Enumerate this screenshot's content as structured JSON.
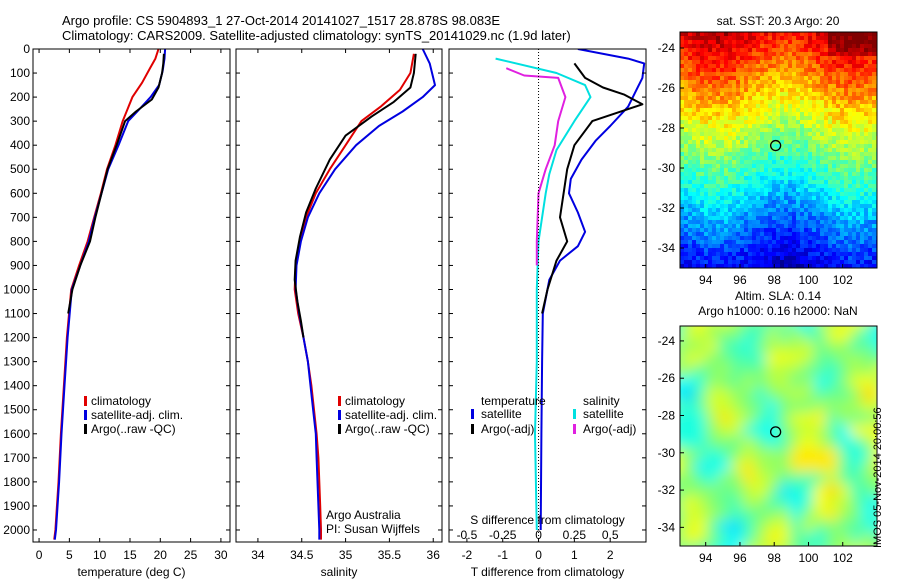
{
  "titles": {
    "line1": "Argo profile: CS 5904893_1 27-Oct-2014 20141027_1517 28.878S 98.083E",
    "line2": "Climatology: CARS2009. Satellite-adjusted climatology: synTS_20141029.nc (1.9d later)"
  },
  "credits": {
    "org": "Argo Australia",
    "pi": "PI: Susan Wijffels",
    "stamp": "IMOS 05-Nov-2014 20:00:56"
  },
  "colors": {
    "climatology": "#e00000",
    "satellite": "#0000e0",
    "argo": "#000000",
    "salinity_sat": "#00e0e0",
    "salinity_argo": "#e020e0"
  },
  "chart_data": [
    {
      "id": "temperature",
      "type": "line",
      "xlabel": "temperature (deg C)",
      "ylabel": "",
      "xlim": [
        -1,
        31.5
      ],
      "ylim": [
        2050,
        0
      ],
      "xticks": [
        0,
        5,
        10,
        15,
        20,
        25,
        30
      ],
      "yticks": [
        0,
        100,
        200,
        300,
        400,
        500,
        600,
        700,
        800,
        900,
        1000,
        1100,
        1200,
        1300,
        1400,
        1500,
        1600,
        1700,
        1800,
        1900,
        2000
      ],
      "legend": [
        "climatology",
        "satellite-adj. clim.",
        "Argo(..raw -QC)"
      ],
      "legend_placement": "lower-center",
      "series": [
        {
          "name": "climatology",
          "color": "#e00000",
          "points": [
            [
              19.7,
              0
            ],
            [
              19.2,
              40
            ],
            [
              18.3,
              80
            ],
            [
              17.0,
              140
            ],
            [
              15.4,
              200
            ],
            [
              13.8,
              300
            ],
            [
              12.6,
              400
            ],
            [
              11.2,
              500
            ],
            [
              10.2,
              600
            ],
            [
              9.1,
              700
            ],
            [
              8.0,
              800
            ],
            [
              6.6,
              900
            ],
            [
              5.3,
              1000
            ],
            [
              4.6,
              1200
            ],
            [
              4.1,
              1400
            ],
            [
              3.6,
              1600
            ],
            [
              3.2,
              1800
            ],
            [
              2.7,
              2000
            ],
            [
              2.5,
              2040
            ]
          ]
        },
        {
          "name": "satellite-adj. clim.",
          "color": "#0000e0",
          "points": [
            [
              20.8,
              0
            ],
            [
              20.7,
              40
            ],
            [
              20.4,
              90
            ],
            [
              19.8,
              150
            ],
            [
              18.4,
              200
            ],
            [
              16.2,
              260
            ],
            [
              14.7,
              300
            ],
            [
              13.1,
              400
            ],
            [
              11.4,
              500
            ],
            [
              10.3,
              600
            ],
            [
              9.2,
              700
            ],
            [
              8.2,
              800
            ],
            [
              6.8,
              900
            ],
            [
              5.4,
              1000
            ],
            [
              4.7,
              1200
            ],
            [
              4.2,
              1400
            ],
            [
              3.7,
              1600
            ],
            [
              3.3,
              1800
            ],
            [
              2.8,
              2000
            ],
            [
              2.6,
              2040
            ]
          ]
        },
        {
          "name": "Argo(..raw -QC)",
          "color": "#000000",
          "points": [
            [
              20.6,
              20
            ],
            [
              20.5,
              60
            ],
            [
              20.3,
              100
            ],
            [
              19.7,
              160
            ],
            [
              18.6,
              210
            ],
            [
              16.0,
              260
            ],
            [
              14.2,
              300
            ],
            [
              12.8,
              400
            ],
            [
              11.3,
              500
            ],
            [
              10.3,
              600
            ],
            [
              9.3,
              700
            ],
            [
              8.4,
              800
            ],
            [
              6.8,
              900
            ],
            [
              5.5,
              1000
            ],
            [
              4.8,
              1100
            ]
          ]
        }
      ]
    },
    {
      "id": "salinity",
      "type": "line",
      "xlabel": "salinity",
      "ylabel": "",
      "xlim": [
        33.75,
        36.1
      ],
      "ylim": [
        2050,
        0
      ],
      "xticks": [
        34,
        34.5,
        35,
        35.5,
        36
      ],
      "legend": [
        "climatology",
        "satellite-adj. clim.",
        "Argo(..raw -QC)"
      ],
      "legend_placement": "lower-center",
      "series": [
        {
          "name": "climatology",
          "color": "#e00000",
          "points": [
            [
              35.78,
              20
            ],
            [
              35.74,
              100
            ],
            [
              35.62,
              170
            ],
            [
              35.4,
              240
            ],
            [
              35.18,
              300
            ],
            [
              35.0,
              400
            ],
            [
              34.82,
              500
            ],
            [
              34.66,
              600
            ],
            [
              34.55,
              700
            ],
            [
              34.48,
              800
            ],
            [
              34.43,
              900
            ],
            [
              34.42,
              1000
            ],
            [
              34.46,
              1100
            ],
            [
              34.52,
              1200
            ],
            [
              34.57,
              1300
            ],
            [
              34.61,
              1400
            ],
            [
              34.64,
              1500
            ],
            [
              34.67,
              1600
            ],
            [
              34.69,
              1700
            ],
            [
              34.7,
              1800
            ],
            [
              34.71,
              1900
            ],
            [
              34.72,
              2000
            ],
            [
              34.72,
              2040
            ]
          ]
        },
        {
          "name": "satellite-adj. clim.",
          "color": "#0000e0",
          "points": [
            [
              35.88,
              0
            ],
            [
              35.96,
              60
            ],
            [
              36.02,
              150
            ],
            [
              35.88,
              200
            ],
            [
              35.65,
              260
            ],
            [
              35.38,
              320
            ],
            [
              35.12,
              400
            ],
            [
              34.88,
              500
            ],
            [
              34.7,
              600
            ],
            [
              34.57,
              700
            ],
            [
              34.49,
              800
            ],
            [
              34.44,
              900
            ],
            [
              34.43,
              1000
            ],
            [
              34.47,
              1100
            ],
            [
              34.52,
              1200
            ],
            [
              34.57,
              1300
            ],
            [
              34.6,
              1400
            ],
            [
              34.63,
              1500
            ],
            [
              34.66,
              1600
            ],
            [
              34.67,
              1700
            ],
            [
              34.68,
              1800
            ],
            [
              34.69,
              1900
            ],
            [
              34.7,
              2000
            ],
            [
              34.7,
              2040
            ]
          ]
        },
        {
          "name": "Argo(..raw -QC)",
          "color": "#000000",
          "points": [
            [
              35.8,
              20
            ],
            [
              35.78,
              100
            ],
            [
              35.74,
              160
            ],
            [
              35.55,
              220
            ],
            [
              35.3,
              280
            ],
            [
              35.0,
              360
            ],
            [
              34.82,
              460
            ],
            [
              34.66,
              580
            ],
            [
              34.55,
              680
            ],
            [
              34.48,
              780
            ],
            [
              34.43,
              880
            ],
            [
              34.42,
              960
            ],
            [
              34.45,
              1050
            ],
            [
              34.49,
              1130
            ],
            [
              34.52,
              1200
            ]
          ]
        }
      ]
    },
    {
      "id": "difference",
      "type": "line",
      "xlabel": "T difference from climatology",
      "x2label": "S difference from climatology",
      "ylabel": "",
      "xlim": [
        -2.5,
        3.0
      ],
      "x2ticks": [
        -0.5,
        -0.25,
        0,
        0.25,
        0.5
      ],
      "x2ticklabels": [
        "-0.5",
        "-0.25",
        "0",
        "0.25",
        "0.5"
      ],
      "ylim": [
        2050,
        0
      ],
      "xticks": [
        -2,
        -1,
        0,
        1,
        2
      ],
      "legend_groups": [
        {
          "title": "temperature",
          "entries": [
            "satellite",
            "Argo(-adj)"
          ]
        },
        {
          "title": "salinity",
          "entries": [
            "satellite",
            "Argo(-adj)"
          ]
        }
      ],
      "series": [
        {
          "name": "temperature satellite",
          "color": "#0000e0",
          "points": [
            [
              1.1,
              0
            ],
            [
              2.5,
              40
            ],
            [
              2.95,
              60
            ],
            [
              2.9,
              120
            ],
            [
              2.5,
              240
            ],
            [
              2.0,
              320
            ],
            [
              1.6,
              380
            ],
            [
              1.2,
              460
            ],
            [
              0.9,
              540
            ],
            [
              0.85,
              600
            ],
            [
              1.1,
              680
            ],
            [
              1.3,
              760
            ],
            [
              1.1,
              820
            ],
            [
              0.6,
              880
            ],
            [
              0.3,
              960
            ],
            [
              0.12,
              1100
            ],
            [
              0.1,
              1300
            ],
            [
              0.08,
              1600
            ],
            [
              0.06,
              2000
            ]
          ]
        },
        {
          "name": "temperature Argo(-adj)",
          "color": "#000000",
          "points": [
            [
              1.0,
              60
            ],
            [
              1.3,
              120
            ],
            [
              1.8,
              160
            ],
            [
              2.4,
              190
            ],
            [
              2.9,
              230
            ],
            [
              1.5,
              300
            ],
            [
              1.0,
              400
            ],
            [
              0.8,
              500
            ],
            [
              0.7,
              600
            ],
            [
              0.6,
              700
            ],
            [
              0.8,
              800
            ],
            [
              0.5,
              880
            ],
            [
              0.25,
              1000
            ],
            [
              0.1,
              1100
            ]
          ]
        },
        {
          "name": "salinity satellite",
          "color": "#00e0e0",
          "points": [
            [
              -1.2,
              40
            ],
            [
              0.5,
              100
            ],
            [
              1.3,
              150
            ],
            [
              1.45,
              200
            ],
            [
              1.0,
              300
            ],
            [
              0.5,
              420
            ],
            [
              0.3,
              520
            ],
            [
              0.2,
              600
            ],
            [
              0.0,
              800
            ],
            [
              -0.05,
              1000
            ],
            [
              -0.05,
              1300
            ],
            [
              -0.1,
              1600
            ],
            [
              -0.05,
              2000
            ]
          ]
        },
        {
          "name": "salinity Argo(-adj)",
          "color": "#e020e0",
          "points": [
            [
              -0.9,
              80
            ],
            [
              -0.4,
              110
            ],
            [
              0.55,
              120
            ],
            [
              0.75,
              200
            ],
            [
              0.55,
              300
            ],
            [
              0.45,
              400
            ],
            [
              0.2,
              500
            ],
            [
              0.0,
              600
            ],
            [
              -0.05,
              800
            ],
            [
              -0.05,
              900
            ]
          ]
        }
      ]
    },
    {
      "id": "sst_map",
      "type": "heatmap",
      "title": "sat. SST: 20.3 Argo: 20",
      "xlim": [
        92.5,
        104
      ],
      "ylim": [
        -35,
        -23.2
      ],
      "xticks": [
        94,
        96,
        98,
        100,
        102
      ],
      "yticks": [
        -24,
        -26,
        -28,
        -30,
        -32,
        -34
      ],
      "marker": {
        "lon": 98.083,
        "lat": -28.878
      }
    },
    {
      "id": "sla_map",
      "type": "heatmap",
      "title": "Altim. SLA: 0.14",
      "subtitle": "Argo h1000: 0.16 h2000: NaN",
      "xlim": [
        92.5,
        104
      ],
      "ylim": [
        -35,
        -23.2
      ],
      "xticks": [
        94,
        96,
        98,
        100,
        102
      ],
      "yticks": [
        -24,
        -26,
        -28,
        -30,
        -32,
        -34
      ],
      "marker": {
        "lon": 98.083,
        "lat": -28.878
      }
    }
  ]
}
